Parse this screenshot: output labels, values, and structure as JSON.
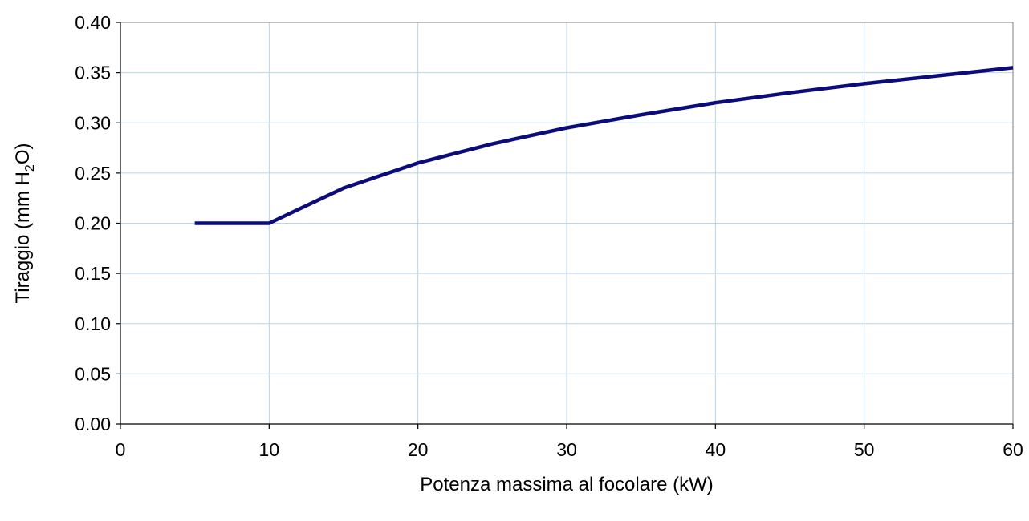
{
  "chart_data": {
    "type": "line",
    "title": "",
    "xlabel": "Potenza massima al focolare (kW)",
    "ylabel": {
      "prefix": "Tiraggio (mm H",
      "subscript": "2",
      "suffix": "O)"
    },
    "xlim": [
      0,
      60
    ],
    "ylim": [
      0,
      0.4
    ],
    "x_ticks": [
      0,
      10,
      20,
      30,
      40,
      50,
      60
    ],
    "x_tick_labels": [
      "0",
      "10",
      "20",
      "30",
      "40",
      "50",
      "60"
    ],
    "y_ticks": [
      0,
      0.05,
      0.1,
      0.15,
      0.2,
      0.25,
      0.3,
      0.35,
      0.4
    ],
    "y_tick_labels": [
      "0.00",
      "0.05",
      "0.10",
      "0.15",
      "0.20",
      "0.25",
      "0.30",
      "0.35",
      "0.40"
    ],
    "grid": true,
    "legend": "none",
    "series": [
      {
        "color": "#0b0b7a",
        "x": [
          5,
          10,
          15,
          20,
          25,
          30,
          35,
          40,
          45,
          50,
          55,
          60
        ],
        "y": [
          0.2,
          0.2,
          0.235,
          0.26,
          0.279,
          0.295,
          0.308,
          0.32,
          0.33,
          0.339,
          0.347,
          0.355
        ]
      }
    ]
  },
  "colors": {
    "grid": "#b8d4ea",
    "axis": "#000000",
    "plot_border": "#7f7f7f"
  }
}
